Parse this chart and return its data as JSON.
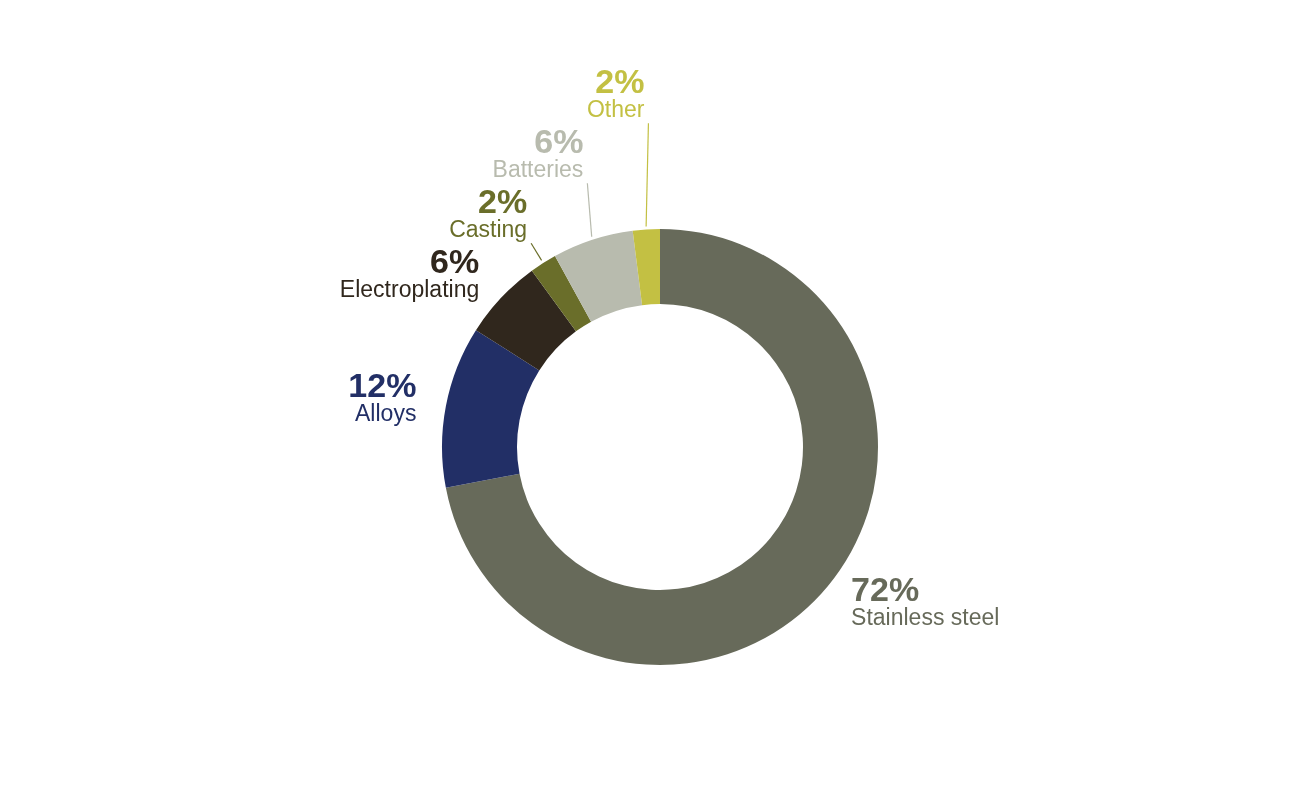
{
  "chart_data": {
    "type": "donut",
    "categories": [
      "Stainless steel",
      "Alloys",
      "Electroplating",
      "Casting",
      "Batteries",
      "Other"
    ],
    "values": [
      72,
      12,
      6,
      2,
      6,
      2
    ],
    "value_labels": [
      "72%",
      "12%",
      "6%",
      "2%",
      "6%",
      "2%"
    ],
    "colors": [
      "#676a5a",
      "#222f66",
      "#30271d",
      "#6a6e2a",
      "#b8bbae",
      "#c3c043"
    ]
  }
}
